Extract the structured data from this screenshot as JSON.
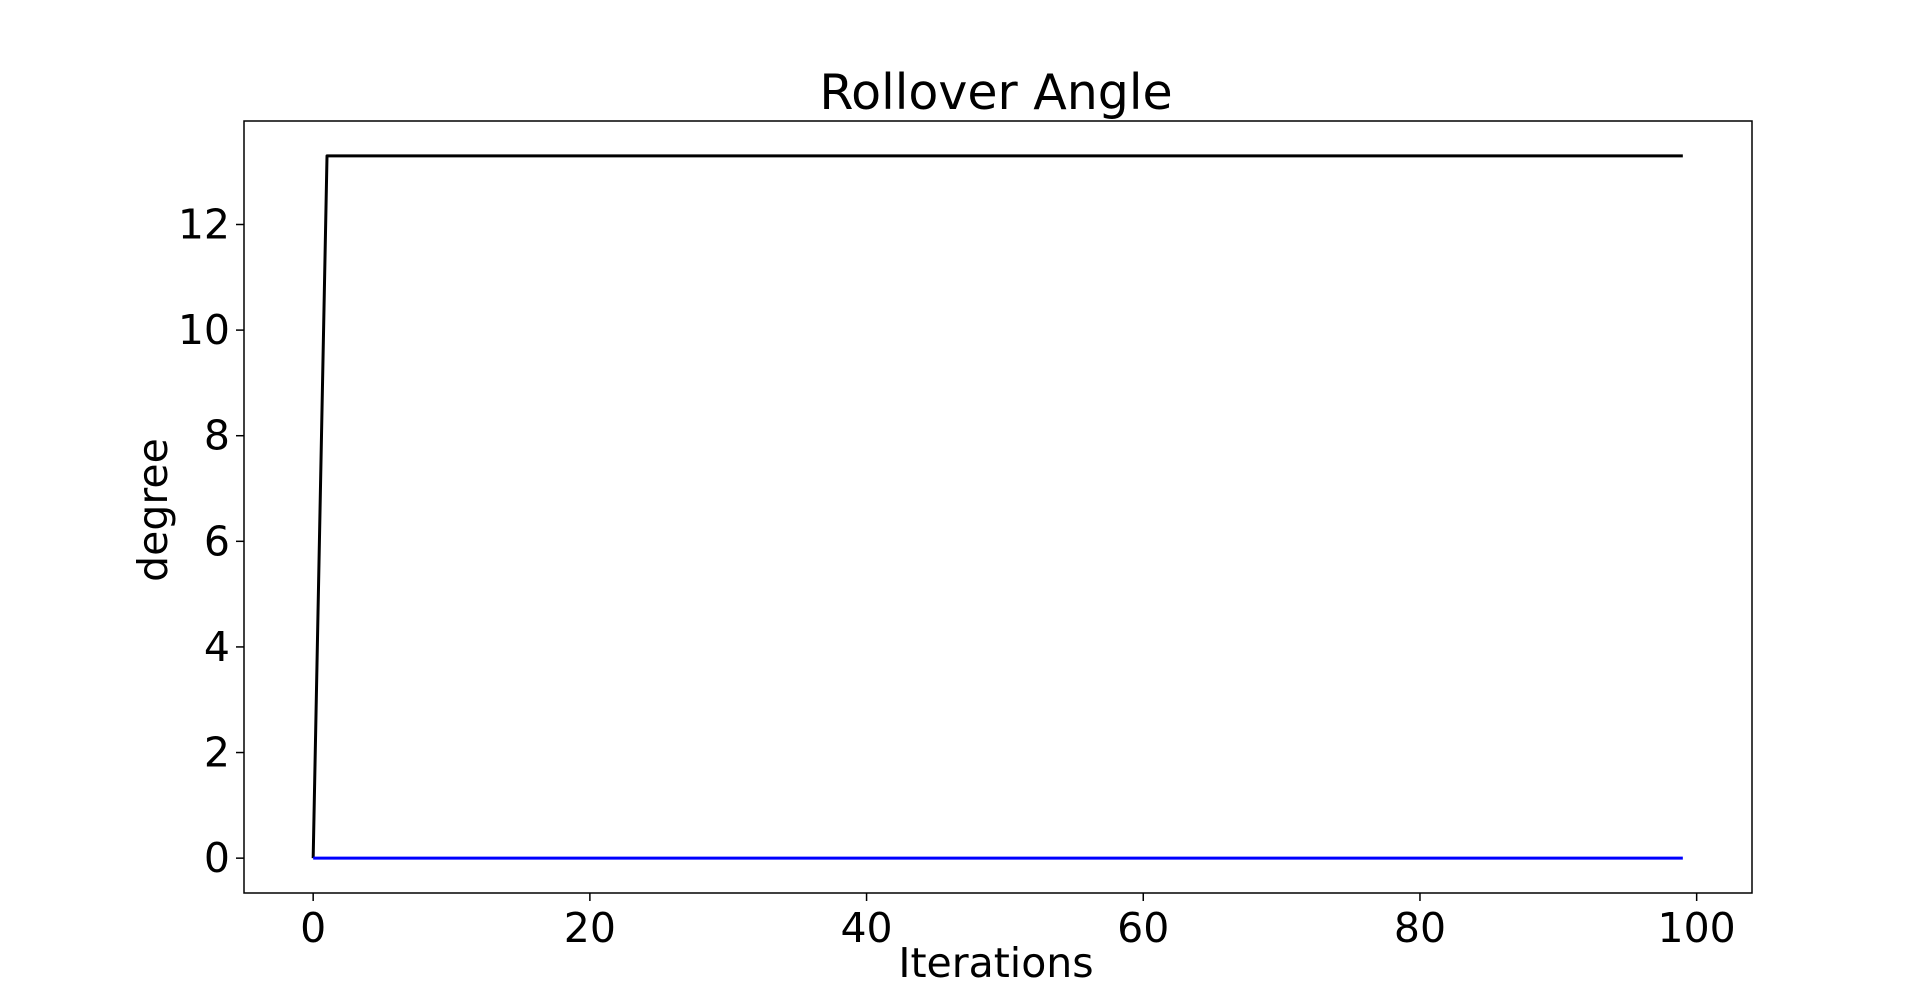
{
  "chart_data": {
    "type": "line",
    "title": "Rollover Angle",
    "xlabel": "Iterations",
    "ylabel": "degree",
    "xlim": [
      -5,
      104
    ],
    "ylim": [
      -0.66,
      13.96
    ],
    "xticks": [
      0,
      20,
      40,
      60,
      80,
      100
    ],
    "yticks": [
      0,
      2,
      4,
      6,
      8,
      10,
      12
    ],
    "grid": false,
    "legend": "none",
    "series": [
      {
        "color": "#000000",
        "x": [
          0,
          1,
          99
        ],
        "y": [
          0,
          13.3,
          13.3
        ]
      },
      {
        "color": "#0000ff",
        "x": [
          0,
          99
        ],
        "y": [
          0,
          0
        ]
      }
    ]
  }
}
